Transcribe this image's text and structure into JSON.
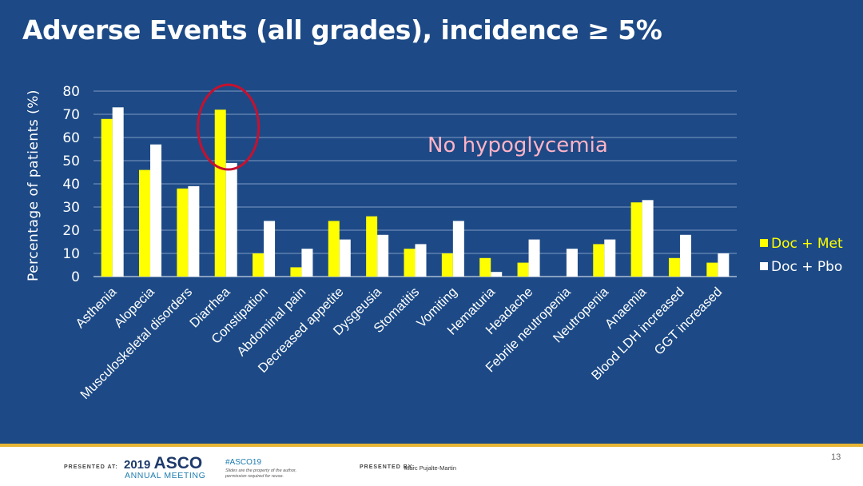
{
  "slide": {
    "title": "Adverse Events (all grades), incidence ≥ 5%",
    "page_number": "13"
  },
  "footer": {
    "presented_at_label": "PRESENTED AT:",
    "asco_year": "2019",
    "asco_name": "ASCO",
    "asco_meeting": "ANNUAL MEETING",
    "hashtag": "#ASCO19",
    "rights_line1": "Slides are the property of the author,",
    "rights_line2": "permission required for reuse.",
    "presented_by_label": "PRESENTED BY:",
    "presenter": "Marc Pujalte-Martin"
  },
  "colors": {
    "background": "#1d4a86",
    "series_met": "#ffff00",
    "series_pbo": "#ffffff",
    "annotation": "#ffb3c6",
    "highlight_circle": "#c8102e",
    "gold_rule": "#e8b533"
  },
  "chart_data": {
    "type": "bar",
    "title": "Adverse Events (all grades), incidence ≥ 5%",
    "xlabel": "",
    "ylabel": "Percentage of patients (%)",
    "ylim": [
      0,
      80
    ],
    "yticks": [
      "0",
      "10",
      "20",
      "30",
      "40",
      "50",
      "60",
      "70",
      "80"
    ],
    "grid": true,
    "legend_position": "right",
    "categories": [
      "Asthenia",
      "Alopecia",
      "Musculoskeletal disorders",
      "Diarrhea",
      "Constipation",
      "Abdominal pain",
      "Decreased appetite",
      "Dysgeusia",
      "Stomatitis",
      "Vomiting",
      "Hematuria",
      "Headache",
      "Febrile neutropenia",
      "Neutropenia",
      "Anaemia",
      "Blood LDH increased",
      "GGT increased"
    ],
    "series": [
      {
        "name": "Doc + Met",
        "values": [
          68,
          46,
          38,
          72,
          10,
          4,
          24,
          26,
          12,
          10,
          8,
          6,
          0,
          14,
          32,
          8,
          6
        ]
      },
      {
        "name": "Doc + Pbo",
        "values": [
          73,
          57,
          39,
          49,
          24,
          12,
          16,
          18,
          14,
          24,
          2,
          16,
          12,
          16,
          33,
          18,
          10
        ]
      }
    ],
    "annotation": "No hypoglycemia",
    "highlighted_category": "Diarrhea"
  }
}
